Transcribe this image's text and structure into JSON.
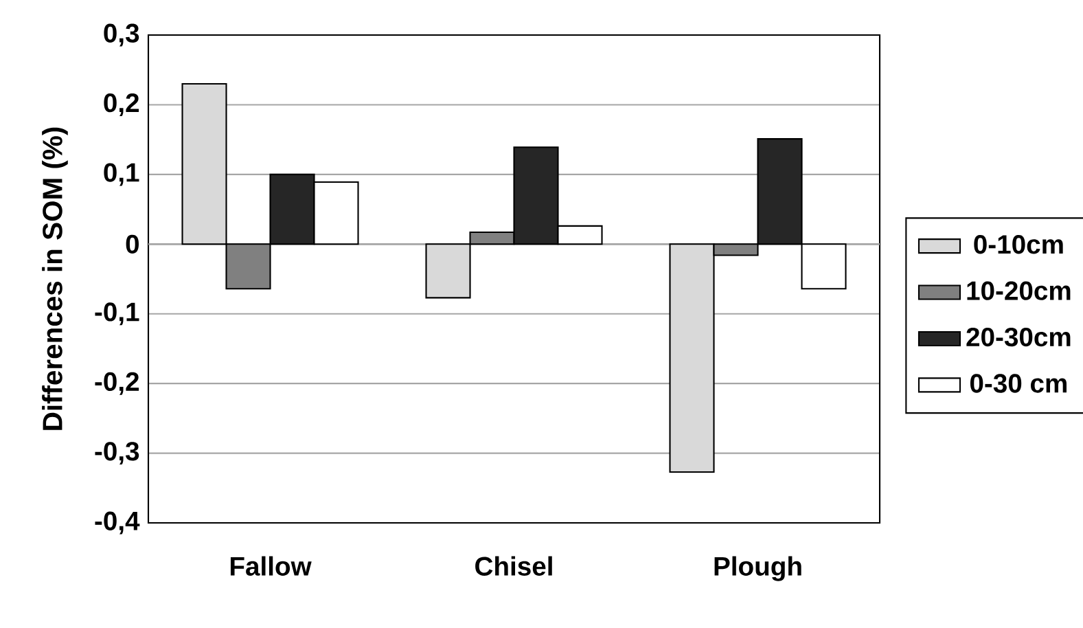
{
  "chart_data": {
    "type": "bar",
    "ylabel": "Differences in SOM (%)",
    "categories": [
      "Fallow",
      "Chisel",
      "Plough"
    ],
    "series": [
      {
        "name": "0-10cm",
        "color": "#d9d9d9",
        "values": [
          0.23,
          -0.077,
          -0.327
        ]
      },
      {
        "name": "10-20cm",
        "color": "#808080",
        "values": [
          -0.064,
          0.017,
          -0.016
        ]
      },
      {
        "name": "20-30cm",
        "color": "#262626",
        "values": [
          0.1,
          0.139,
          0.151
        ]
      },
      {
        "name": "0-30 cm",
        "color": "#ffffff",
        "values": [
          0.089,
          0.026,
          -0.064
        ]
      }
    ],
    "ylim": [
      -0.4,
      0.3
    ],
    "yticks": [
      {
        "value": -0.4,
        "label": "-0,4"
      },
      {
        "value": -0.3,
        "label": "-0,3"
      },
      {
        "value": -0.2,
        "label": "-0,2"
      },
      {
        "value": -0.1,
        "label": "-0,1"
      },
      {
        "value": 0,
        "label": "0"
      },
      {
        "value": 0.1,
        "label": "0,1"
      },
      {
        "value": 0.2,
        "label": "0,2"
      },
      {
        "value": 0.3,
        "label": "0,3"
      }
    ],
    "grid": "y",
    "legend": "right"
  }
}
